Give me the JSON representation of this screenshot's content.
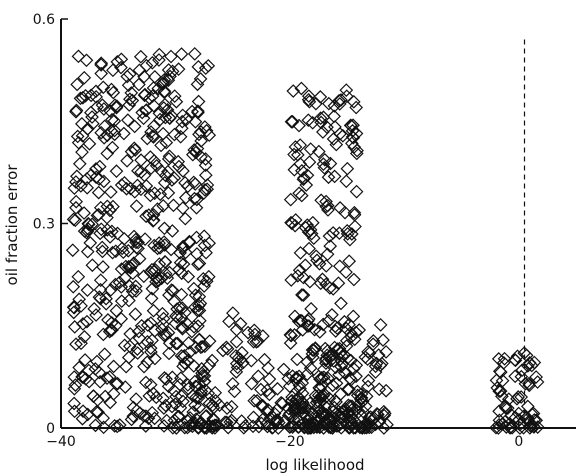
{
  "chart_data": {
    "type": "scatter",
    "title": "",
    "xlabel": "log likelihood",
    "ylabel": "oil fraction error",
    "xlim": [
      -40,
      5
    ],
    "ylim": [
      0,
      0.6
    ],
    "x_ticks": [
      {
        "value": -40,
        "label": "−40"
      },
      {
        "value": -20,
        "label": "−20"
      },
      {
        "value": 0,
        "label": "0"
      }
    ],
    "y_ticks": [
      {
        "value": 0,
        "label": "0"
      },
      {
        "value": 0.3,
        "label": "0.3"
      },
      {
        "value": 0.6,
        "label": "0.6"
      }
    ],
    "reference_line": {
      "orientation": "vertical",
      "x": 0.5,
      "style": "dashed"
    },
    "marker": "diamond",
    "grid": false,
    "clusters": [
      {
        "x_range": [
          -39,
          -27
        ],
        "y_range": [
          0.0,
          0.55
        ],
        "count": 520
      },
      {
        "x_range": [
          -30,
          -11.5
        ],
        "y_range": [
          0.0,
          0.17
        ],
        "count": 260
      },
      {
        "x_range": [
          -20,
          -14
        ],
        "y_range": [
          0.1,
          0.5
        ],
        "count": 160
      },
      {
        "x_range": [
          -20,
          -13
        ],
        "y_range": [
          0.0,
          0.1
        ],
        "count": 120
      },
      {
        "x_range": [
          -2,
          1.7
        ],
        "y_range": [
          0.0,
          0.11
        ],
        "count": 70
      }
    ]
  }
}
